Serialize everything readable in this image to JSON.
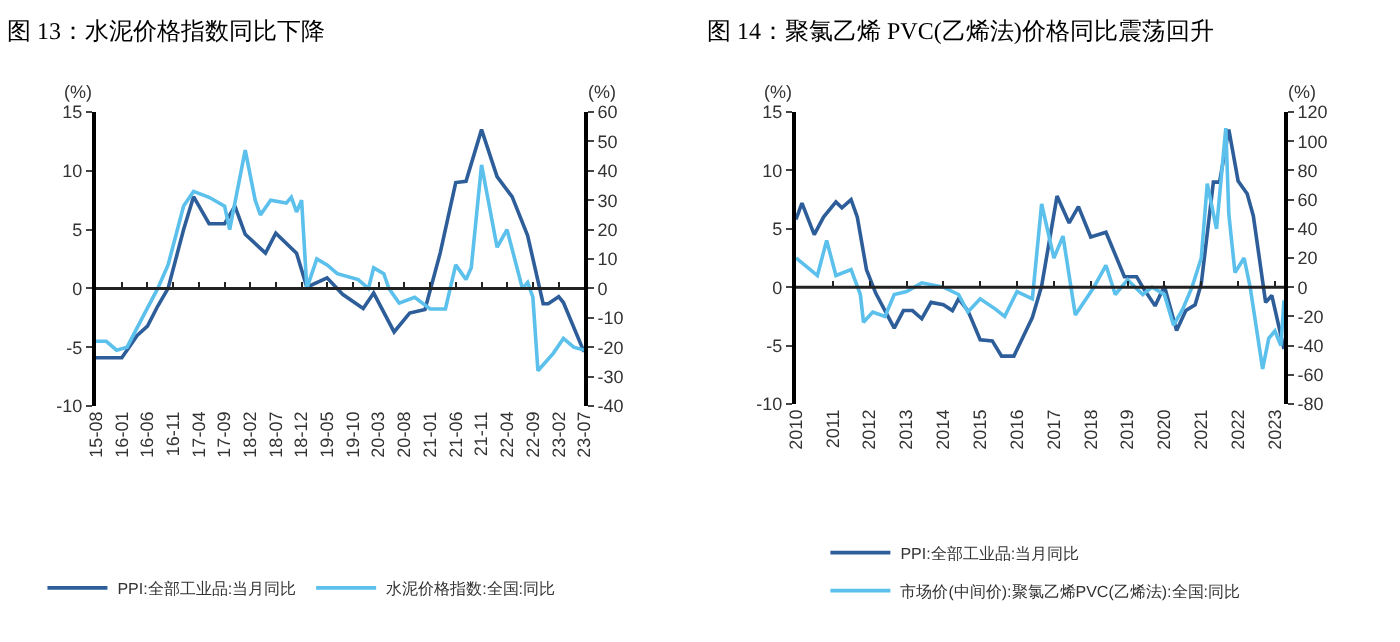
{
  "chart_data": [
    {
      "type": "line",
      "title": "图 13：水泥价格指数同比下降",
      "ylabel": "(%)",
      "y2label": "(%)",
      "xlim": [
        "2015-08",
        "2023-07"
      ],
      "xticks": [
        {
          "value": "2015-08",
          "label": "15-08"
        },
        {
          "value": "2016-01",
          "label": "16-01"
        },
        {
          "value": "2016-06",
          "label": "16-06"
        },
        {
          "value": "2016-11",
          "label": "16-11"
        },
        {
          "value": "2017-04",
          "label": "17-04"
        },
        {
          "value": "2017-09",
          "label": "17-09"
        },
        {
          "value": "2018-02",
          "label": "18-02"
        },
        {
          "value": "2018-07",
          "label": "18-07"
        },
        {
          "value": "2018-12",
          "label": "18-12"
        },
        {
          "value": "2019-05",
          "label": "19-05"
        },
        {
          "value": "2019-10",
          "label": "19-10"
        },
        {
          "value": "2020-03",
          "label": "20-03"
        },
        {
          "value": "2020-08",
          "label": "20-08"
        },
        {
          "value": "2021-01",
          "label": "21-01"
        },
        {
          "value": "2021-06",
          "label": "21-06"
        },
        {
          "value": "2021-11",
          "label": "21-11"
        },
        {
          "value": "2022-04",
          "label": "22-04"
        },
        {
          "value": "2022-09",
          "label": "22-09"
        },
        {
          "value": "2023-02",
          "label": "23-02"
        },
        {
          "value": "2023-07",
          "label": "23-07"
        }
      ],
      "ylim": [
        -10,
        15
      ],
      "yticks": [
        -10,
        -5,
        0,
        5,
        10,
        15
      ],
      "y2lim": [
        -40,
        60
      ],
      "y2ticks": [
        -40,
        -30,
        -20,
        -10,
        0,
        10,
        20,
        30,
        40,
        50,
        60
      ],
      "grid": false,
      "ref_lines": [
        {
          "axis": "y",
          "value": 0,
          "color": "#222222"
        }
      ],
      "legend": "bottom",
      "marker": "none",
      "line_style": "solid",
      "series": [
        {
          "name": "PPI:全部工业品:当月同比",
          "color": "#2e5e9a",
          "x": [
            "2015-08",
            "2016-01",
            "2016-04",
            "2016-06",
            "2016-08",
            "2016-10",
            "2017-01",
            "2017-03",
            "2017-06",
            "2017-09",
            "2017-11",
            "2018-01",
            "2018-05",
            "2018-07",
            "2018-11",
            "2019-01",
            "2019-05",
            "2019-08",
            "2019-12",
            "2020-02",
            "2020-06",
            "2020-09",
            "2020-12",
            "2021-03",
            "2021-06",
            "2021-08",
            "2021-11",
            "2022-02",
            "2022-05",
            "2022-08",
            "2022-11",
            "2022-12",
            "2023-02",
            "2023-03",
            "2023-07"
          ],
          "values": [
            -5.9,
            -5.9,
            -4,
            -3.2,
            -1.5,
            0,
            5,
            7.8,
            5.5,
            5.5,
            7,
            4.6,
            3,
            4.7,
            3,
            0.1,
            0.9,
            -0.5,
            -1.7,
            -0.4,
            -3.7,
            -2.1,
            -1.8,
            3,
            9,
            9.1,
            13.5,
            9.5,
            7.8,
            4.5,
            -1.3,
            -1.3,
            -0.7,
            -1.2,
            -5.4
          ]
        },
        {
          "name": "水泥价格指数:全国:同比",
          "color": "#5bc0eb",
          "axis": "y2",
          "x": [
            "2015-08",
            "2015-10",
            "2015-12",
            "2016-02",
            "2016-05",
            "2016-08",
            "2016-10",
            "2017-01",
            "2017-03",
            "2017-06",
            "2017-09",
            "2017-10",
            "2018-01",
            "2018-03",
            "2018-04",
            "2018-06",
            "2018-09",
            "2018-10",
            "2018-11",
            "2018-12",
            "2019-01",
            "2019-03",
            "2019-05",
            "2019-07",
            "2019-11",
            "2020-01",
            "2020-02",
            "2020-04",
            "2020-05",
            "2020-07",
            "2020-10",
            "2021-01",
            "2021-04",
            "2021-06",
            "2021-08",
            "2021-09",
            "2021-11",
            "2022-02",
            "2022-04",
            "2022-07",
            "2022-08",
            "2022-09",
            "2022-10",
            "2023-01",
            "2023-03",
            "2023-05",
            "2023-07"
          ],
          "values": [
            -18,
            -18,
            -21,
            -20,
            -10,
            0,
            8,
            28,
            33,
            31,
            28,
            20,
            47,
            30,
            25,
            30,
            29,
            31,
            26,
            30,
            0,
            10,
            8,
            5,
            3,
            0,
            7,
            5,
            0,
            -5,
            -3,
            -7,
            -7,
            8,
            3,
            7,
            42,
            14,
            20,
            0,
            2,
            -3,
            -28,
            -22,
            -17,
            -20,
            -21
          ]
        }
      ]
    },
    {
      "type": "line",
      "title": "图 14：聚氯乙烯 PVC(乙烯法)价格同比震荡回升",
      "ylabel": "(%)",
      "y2label": "(%)",
      "xlim": [
        "2010-01",
        "2023-04"
      ],
      "xticks": [
        "2010",
        "2011",
        "2012",
        "2013",
        "2014",
        "2015",
        "2016",
        "2017",
        "2018",
        "2019",
        "2020",
        "2021",
        "2022",
        "2023"
      ],
      "ylim": [
        -10,
        15
      ],
      "yticks": [
        -10,
        -5,
        0,
        5,
        10,
        15
      ],
      "y2lim": [
        -80,
        120
      ],
      "y2ticks": [
        -80,
        -60,
        -40,
        -20,
        0,
        20,
        40,
        60,
        80,
        100,
        120
      ],
      "grid": false,
      "ref_lines": [
        {
          "axis": "y",
          "value": 0,
          "color": "#222222"
        }
      ],
      "legend": "bottom",
      "marker": "none",
      "line_style": "solid",
      "series": [
        {
          "name": "PPI:全部工业品:当月同比",
          "color": "#2e5e9a",
          "x": [
            "2010-01",
            "2010-03",
            "2010-07",
            "2010-10",
            "2011-02",
            "2011-04",
            "2011-07",
            "2011-09",
            "2011-12",
            "2012-03",
            "2012-06",
            "2012-09",
            "2012-12",
            "2013-03",
            "2013-06",
            "2013-09",
            "2014-01",
            "2014-04",
            "2014-06",
            "2014-09",
            "2015-01",
            "2015-05",
            "2015-08",
            "2015-12",
            "2016-06",
            "2016-09",
            "2017-02",
            "2017-06",
            "2017-09",
            "2018-01",
            "2018-06",
            "2018-12",
            "2019-04",
            "2019-06",
            "2019-10",
            "2020-01",
            "2020-05",
            "2020-08",
            "2020-11",
            "2021-01",
            "2021-05",
            "2021-07",
            "2021-10",
            "2022-01",
            "2022-04",
            "2022-06",
            "2022-10",
            "2022-12",
            "2023-04"
          ],
          "values": [
            5.8,
            7.2,
            4.5,
            6,
            7.3,
            6.8,
            7.5,
            6,
            1.5,
            -0.5,
            -2,
            -3.5,
            -2,
            -2,
            -2.7,
            -1.3,
            -1.5,
            -2,
            -1,
            -2,
            -4.5,
            -4.6,
            -5.9,
            -5.9,
            -2.6,
            0.1,
            7.8,
            5.5,
            6.9,
            4.3,
            4.7,
            0.9,
            0.9,
            0,
            -1.6,
            0.1,
            -3.7,
            -2,
            -1.5,
            0.3,
            9,
            9,
            13.5,
            9.1,
            8,
            6.1,
            -1.3,
            -0.7,
            -5.3
          ]
        },
        {
          "name": "市场价(中间价):聚氯乙烯PVC(乙烯法):全国:同比",
          "color": "#5bc0eb",
          "axis": "y2",
          "x": [
            "2010-01",
            "2010-04",
            "2010-08",
            "2010-11",
            "2011-02",
            "2011-07",
            "2011-10",
            "2011-11",
            "2012-02",
            "2012-06",
            "2012-09",
            "2013-01",
            "2013-06",
            "2014-01",
            "2014-06",
            "2014-09",
            "2015-01",
            "2015-06",
            "2015-09",
            "2016-01",
            "2016-06",
            "2016-09",
            "2017-01",
            "2017-04",
            "2017-08",
            "2018-02",
            "2018-06",
            "2018-09",
            "2019-01",
            "2019-06",
            "2019-09",
            "2020-01",
            "2020-04",
            "2020-07",
            "2020-10",
            "2021-01",
            "2021-03",
            "2021-06",
            "2021-09",
            "2021-10",
            "2021-12",
            "2022-03",
            "2022-05",
            "2022-09",
            "2022-11",
            "2023-01",
            "2023-03",
            "2023-04"
          ],
          "values": [
            20,
            15,
            8,
            32,
            8,
            12,
            -5,
            -24,
            -17,
            -20,
            -5,
            -3,
            3,
            0,
            -5,
            -17,
            -8,
            -15,
            -20,
            -3,
            -8,
            57,
            20,
            35,
            -19,
            0,
            15,
            -5,
            5,
            -5,
            0,
            -5,
            -26,
            -15,
            0,
            20,
            71,
            40,
            109,
            50,
            10,
            20,
            0,
            -56,
            -35,
            -30,
            -40,
            -9
          ]
        }
      ]
    }
  ]
}
